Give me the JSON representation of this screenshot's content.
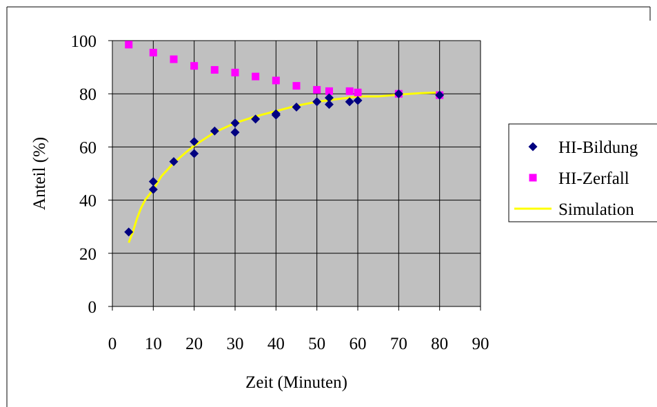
{
  "chart_data": {
    "type": "scatter",
    "title": "",
    "xlabel": "Zeit (Minuten)",
    "ylabel": "Anteil (%)",
    "xlim": [
      0,
      90
    ],
    "ylim": [
      0,
      100
    ],
    "x_ticks": [
      "0",
      "10",
      "20",
      "30",
      "40",
      "50",
      "60",
      "70",
      "80",
      "90"
    ],
    "y_ticks": [
      "0",
      "20",
      "40",
      "60",
      "80",
      "100"
    ],
    "x_tick_values": [
      0,
      10,
      20,
      30,
      40,
      50,
      60,
      70,
      80,
      90
    ],
    "y_tick_values": [
      0,
      20,
      40,
      60,
      80,
      100
    ],
    "grid": true,
    "plot_background": "#c0c0c0",
    "legend": {
      "position": "right",
      "entries": [
        "HI-Bildung",
        "HI-Zerfall",
        "Simulation"
      ]
    },
    "series": [
      {
        "name": "HI-Bildung",
        "kind": "scatter",
        "marker": "diamond",
        "color": "#000080",
        "points": [
          [
            4,
            28
          ],
          [
            10,
            47
          ],
          [
            10,
            44
          ],
          [
            15,
            54.5
          ],
          [
            20,
            62
          ],
          [
            20,
            57.5
          ],
          [
            25,
            66
          ],
          [
            30,
            69
          ],
          [
            30,
            65.5
          ],
          [
            35,
            70.5
          ],
          [
            40,
            72.5
          ],
          [
            40,
            72
          ],
          [
            45,
            75
          ],
          [
            50,
            77
          ],
          [
            53,
            78.5
          ],
          [
            53,
            76
          ],
          [
            58,
            77
          ],
          [
            60,
            77.5
          ],
          [
            70,
            80
          ],
          [
            80,
            79.5
          ]
        ]
      },
      {
        "name": "HI-Zerfall",
        "kind": "scatter",
        "marker": "square",
        "color": "#ff00ff",
        "points": [
          [
            4,
            98.5
          ],
          [
            10,
            95.5
          ],
          [
            15,
            93
          ],
          [
            20,
            90.5
          ],
          [
            25,
            89
          ],
          [
            30,
            88
          ],
          [
            35,
            86.5
          ],
          [
            40,
            85
          ],
          [
            45,
            83
          ],
          [
            50,
            81.5
          ],
          [
            53,
            81
          ],
          [
            58,
            81
          ],
          [
            60,
            80.5
          ],
          [
            70,
            80
          ],
          [
            80,
            79.5
          ]
        ]
      },
      {
        "name": "Simulation",
        "kind": "line",
        "color": "#ffff00",
        "points": [
          [
            4,
            24
          ],
          [
            5,
            28
          ],
          [
            6,
            33
          ],
          [
            7,
            37
          ],
          [
            8,
            40
          ],
          [
            10,
            44
          ],
          [
            12,
            49
          ],
          [
            15,
            54
          ],
          [
            18,
            58
          ],
          [
            20,
            60.5
          ],
          [
            25,
            65.5
          ],
          [
            30,
            69
          ],
          [
            35,
            71.5
          ],
          [
            40,
            73.5
          ],
          [
            45,
            75.5
          ],
          [
            50,
            77
          ],
          [
            55,
            78
          ],
          [
            60,
            79
          ],
          [
            65,
            79
          ],
          [
            70,
            79.7
          ],
          [
            75,
            80.2
          ],
          [
            80,
            80.5
          ]
        ]
      }
    ]
  }
}
